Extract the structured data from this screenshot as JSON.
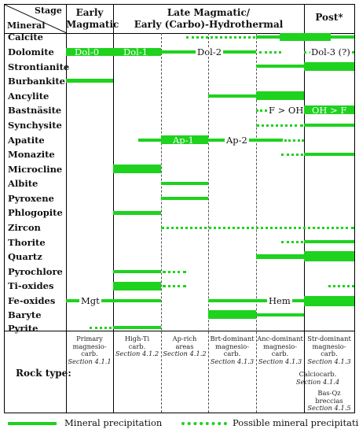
{
  "header": {
    "stage_label": "Stage",
    "mineral_label": "Mineral",
    "early_line1": "Early",
    "early_line2": "Magmatic",
    "late_line1": "Late Magmatic/",
    "late_line2": "Early (Carbo)-Hydrothermal",
    "post": "Post*"
  },
  "minerals": [
    "Calcite",
    "Dolomite",
    "Strontianite",
    "Burbankite",
    "Ancylite",
    "Bastnäsite",
    "Synchysite",
    "Apatite",
    "Monazite",
    "Microcline",
    "Albite",
    "Pyroxene",
    "Phlogopite",
    "Zircon",
    "Thorite",
    "Quartz",
    "Pyrochlore",
    "Ti-oxides",
    "Fe-oxides",
    "Baryte",
    "Pyrite"
  ],
  "bar_labels": {
    "dol0": "Dol-0",
    "dol1": "Dol-1",
    "dol2": "Dol-2",
    "dol3": "Dol-3 (?)",
    "f_oh": "F > OH",
    "oh_f": "OH > F",
    "ap1": "Ap-1",
    "ap2": "Ap-2",
    "mgt": "Mgt",
    "hem": "Hem"
  },
  "rock": {
    "title": "Rock type:",
    "c1": {
      "line1": "Primary",
      "line2": "magnesio-",
      "line3": "carb.",
      "section": "Section 4.1.1"
    },
    "c2": {
      "line1": "High-Ti",
      "line2": "carb.",
      "section": "Section 4.1.2"
    },
    "c3": {
      "line1": "Ap-rich",
      "line2": "areas",
      "section": "Section 4.1.2"
    },
    "c4": {
      "line1": "Brt-dominant",
      "line2": "magnesio-",
      "line3": "carb.",
      "section": "Section 4.1.3"
    },
    "c5": {
      "line1": "Anc-dominant",
      "line2": "magnesio-",
      "line3": "carb.",
      "section": "Section 4.1.3"
    },
    "c6": {
      "line1": "Str-dominant",
      "line2": "magnesio-",
      "line3": "carb.",
      "section": "Section 4.1.3"
    },
    "c6b": {
      "line1": "Calciocarb.",
      "section": "Section 4.1.4"
    },
    "c6c": {
      "line1": "Bas-Qz",
      "line2": "breccias",
      "section": "Section 4.1.5"
    }
  },
  "legend": {
    "solid": "Mineral precipitation",
    "dotted": "Possible mineral precipitation"
  },
  "colors": {
    "bar": "#1ed21e",
    "grid": "#000000"
  }
}
